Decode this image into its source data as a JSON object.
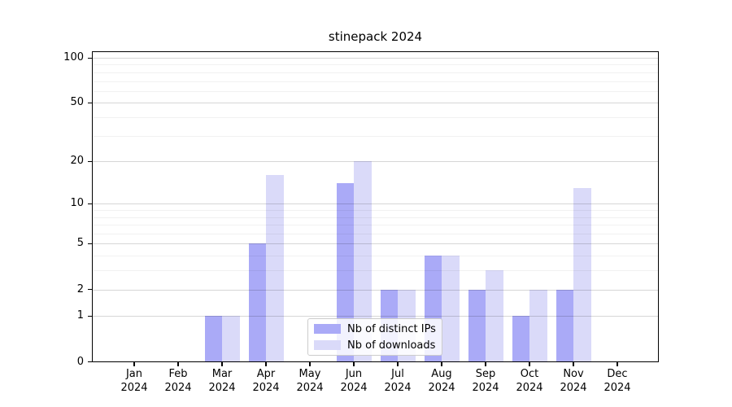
{
  "chart_data": {
    "type": "bar",
    "title": "stinepack 2024",
    "x_year": "2024",
    "categories": [
      "Jan",
      "Feb",
      "Mar",
      "Apr",
      "May",
      "Jun",
      "Jul",
      "Aug",
      "Sep",
      "Oct",
      "Nov",
      "Dec"
    ],
    "series": [
      {
        "name": "Nb of distinct IPs",
        "color": "#aaaaf7",
        "values": [
          0,
          0,
          1,
          5,
          0,
          14,
          2,
          4,
          2,
          1,
          2,
          0
        ]
      },
      {
        "name": "Nb of downloads",
        "color": "#dadaf9",
        "values": [
          0,
          0,
          1,
          16,
          0,
          20,
          2,
          4,
          3,
          2,
          13,
          0
        ]
      }
    ],
    "y_scale": "log1p",
    "ylim": [
      0,
      110
    ],
    "y_ticks": [
      0,
      1,
      2,
      5,
      10,
      20,
      50,
      100
    ],
    "y_minor_ticks": [
      3,
      4,
      6,
      7,
      8,
      9,
      30,
      40,
      60,
      70,
      80,
      90
    ],
    "grid": "major-and-minor-horizontal",
    "legend_position": "lower-center-inside",
    "axis_color": "#000000",
    "background_color": "#ffffff"
  }
}
